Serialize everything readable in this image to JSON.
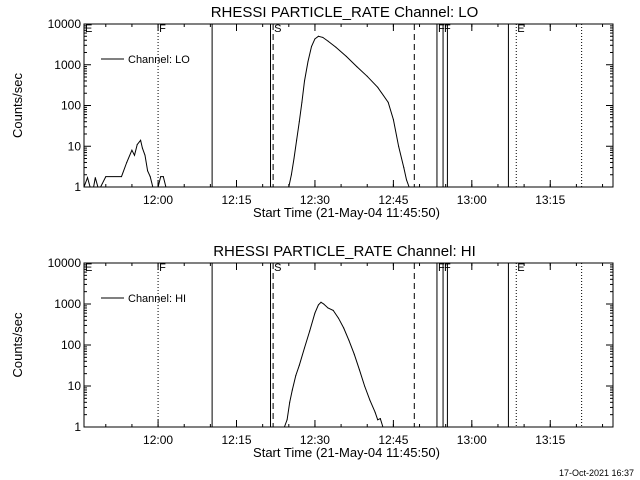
{
  "footer": {
    "timestamp": "17-Oct-2021 16:37"
  },
  "chart_data": [
    {
      "type": "line",
      "title": "RHESSI PARTICLE_RATE Channel: LO",
      "xlabel": "Start Time (21-May-04 11:45:50)",
      "ylabel": "Counts/sec",
      "y_scale": "log",
      "xlim": [
        "11:45:50",
        "13:27:00"
      ],
      "ylim": [
        1,
        10000
      ],
      "xticks": [
        "12:00",
        "12:15",
        "12:30",
        "12:45",
        "13:00",
        "13:15"
      ],
      "yticks": [
        "1",
        "10",
        "100",
        "1000",
        "10000"
      ],
      "legend": {
        "label": "Channel: LO",
        "position": "top-left"
      },
      "series": [
        {
          "name": "Channel: LO",
          "points": [
            [
              "11:45:50",
              1
            ],
            [
              "11:46:30",
              1.7
            ],
            [
              "11:47:00",
              1
            ],
            [
              "11:47:40",
              1
            ],
            [
              "11:48:00",
              1.7
            ],
            [
              "11:48:30",
              1
            ],
            [
              "11:49:00",
              1
            ],
            [
              "11:50:00",
              1.8
            ],
            [
              "11:53:00",
              1.8
            ],
            [
              "11:54:00",
              4
            ],
            [
              "11:55:00",
              8
            ],
            [
              "11:55:30",
              6
            ],
            [
              "11:56:00",
              11
            ],
            [
              "11:56:40",
              14
            ],
            [
              "11:57:00",
              9
            ],
            [
              "11:57:30",
              6
            ],
            [
              "11:58:00",
              2.5
            ],
            [
              "11:58:30",
              1.8
            ],
            [
              "11:59:00",
              1
            ],
            [
              "12:00:00",
              1
            ],
            [
              "12:00:30",
              1.8
            ],
            [
              "12:01:00",
              1.8
            ],
            [
              "12:01:30",
              1
            ],
            [
              "12:25:00",
              1
            ],
            [
              "12:25:30",
              2
            ],
            [
              "12:26:00",
              5
            ],
            [
              "12:26:30",
              14
            ],
            [
              "12:27:00",
              40
            ],
            [
              "12:27:30",
              120
            ],
            [
              "12:28:00",
              400
            ],
            [
              "12:28:40",
              1200
            ],
            [
              "12:29:20",
              2800
            ],
            [
              "12:30:00",
              4300
            ],
            [
              "12:30:40",
              5000
            ],
            [
              "12:31:30",
              4700
            ],
            [
              "12:32:30",
              3800
            ],
            [
              "12:34:00",
              2700
            ],
            [
              "12:36:00",
              1600
            ],
            [
              "12:38:00",
              900
            ],
            [
              "12:40:00",
              520
            ],
            [
              "12:42:00",
              280
            ],
            [
              "12:44:00",
              120
            ],
            [
              "12:45:00",
              45
            ],
            [
              "12:46:00",
              10
            ],
            [
              "12:47:00",
              3
            ],
            [
              "12:47:30",
              1.5
            ],
            [
              "12:48:00",
              1
            ]
          ]
        }
      ],
      "markers": [
        {
          "time": "11:45:50",
          "label": "E",
          "style": "dotted"
        },
        {
          "time": "12:00:00",
          "label": "F",
          "style": "dotted"
        },
        {
          "time": "12:10:20",
          "label": "",
          "style": "solid"
        },
        {
          "time": "12:21:30",
          "label": "",
          "style": "solid"
        },
        {
          "time": "12:22:00",
          "label": "S",
          "style": "dashed"
        },
        {
          "time": "12:49:00",
          "label": "",
          "style": "dashed"
        },
        {
          "time": "12:53:20",
          "label": "F",
          "style": "solid"
        },
        {
          "time": "12:54:30",
          "label": "F",
          "style": "solid"
        },
        {
          "time": "12:55:20",
          "label": "",
          "style": "solid"
        },
        {
          "time": "13:07:00",
          "label": "",
          "style": "solid"
        },
        {
          "time": "13:08:30",
          "label": "E",
          "style": "dotted"
        },
        {
          "time": "13:21:00",
          "label": "",
          "style": "dotted"
        }
      ]
    },
    {
      "type": "line",
      "title": "RHESSI PARTICLE_RATE Channel: HI",
      "xlabel": "Start Time (21-May-04 11:45:50)",
      "ylabel": "Counts/sec",
      "y_scale": "log",
      "xlim": [
        "11:45:50",
        "13:27:00"
      ],
      "ylim": [
        1,
        10000
      ],
      "xticks": [
        "12:00",
        "12:15",
        "12:30",
        "12:45",
        "13:00",
        "13:15"
      ],
      "yticks": [
        "1",
        "10",
        "100",
        "1000",
        "10000"
      ],
      "legend": {
        "label": "Channel: HI",
        "position": "top-left"
      },
      "series": [
        {
          "name": "Channel: HI",
          "points": [
            [
              "12:24:10",
              1
            ],
            [
              "12:24:40",
              1.5
            ],
            [
              "12:25:10",
              4
            ],
            [
              "12:25:40",
              8
            ],
            [
              "12:26:20",
              18
            ],
            [
              "12:27:00",
              32
            ],
            [
              "12:28:00",
              85
            ],
            [
              "12:29:00",
              220
            ],
            [
              "12:30:00",
              600
            ],
            [
              "12:30:40",
              950
            ],
            [
              "12:31:10",
              1100
            ],
            [
              "12:31:40",
              1000
            ],
            [
              "12:32:30",
              800
            ],
            [
              "12:33:30",
              700
            ],
            [
              "12:34:30",
              450
            ],
            [
              "12:35:30",
              260
            ],
            [
              "12:36:30",
              130
            ],
            [
              "12:37:30",
              60
            ],
            [
              "12:38:30",
              25
            ],
            [
              "12:39:30",
              10
            ],
            [
              "12:40:30",
              4.5
            ],
            [
              "12:41:30",
              2.3
            ],
            [
              "12:42:00",
              1.5
            ],
            [
              "12:42:30",
              1.6
            ],
            [
              "12:43:00",
              1
            ]
          ]
        }
      ],
      "markers": [
        {
          "time": "11:45:50",
          "label": "E",
          "style": "dotted"
        },
        {
          "time": "12:00:00",
          "label": "F",
          "style": "dotted"
        },
        {
          "time": "12:10:20",
          "label": "",
          "style": "solid"
        },
        {
          "time": "12:21:30",
          "label": "",
          "style": "solid"
        },
        {
          "time": "12:22:00",
          "label": "S",
          "style": "dashed"
        },
        {
          "time": "12:49:00",
          "label": "",
          "style": "dashed"
        },
        {
          "time": "12:53:20",
          "label": "F",
          "style": "solid"
        },
        {
          "time": "12:54:30",
          "label": "F",
          "style": "solid"
        },
        {
          "time": "12:55:20",
          "label": "",
          "style": "solid"
        },
        {
          "time": "13:07:00",
          "label": "",
          "style": "solid"
        },
        {
          "time": "13:08:30",
          "label": "E",
          "style": "dotted"
        },
        {
          "time": "13:21:00",
          "label": "",
          "style": "dotted"
        }
      ]
    }
  ]
}
